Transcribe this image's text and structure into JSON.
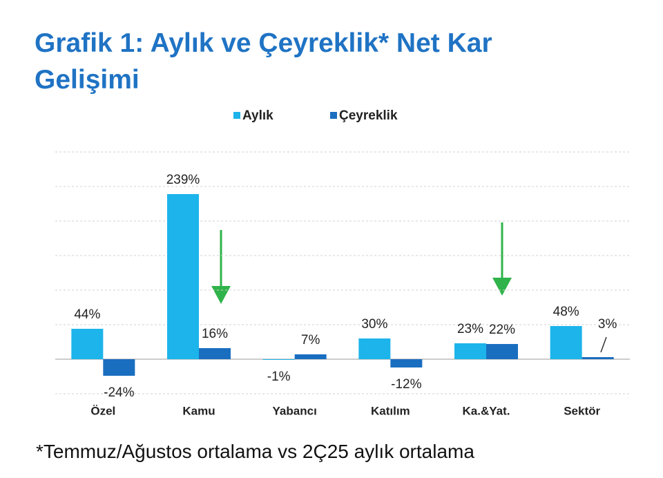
{
  "chart_data": {
    "type": "bar",
    "title": "Grafik 1: Aylık ve Çeyreklik* Net Kar Gelişimi",
    "footnote": "*Temmuz/Ağustos ortalama vs 2Ç25 aylık ortalama",
    "categories": [
      "Özel",
      "Kamu",
      "Yabancı",
      "Katılım",
      "Ka.&Yat.",
      "Sektör"
    ],
    "series": [
      {
        "name": "Aylık",
        "color": "#1cb4ea",
        "values": [
          44,
          239,
          -1,
          30,
          23,
          48
        ],
        "value_labels": [
          "44%",
          "239%",
          "-1%",
          "30%",
          "23%",
          "48%"
        ]
      },
      {
        "name": "Çeyreklik",
        "color": "#1a6ec0",
        "values": [
          -24,
          16,
          7,
          -12,
          22,
          3
        ],
        "value_labels": [
          "-24%",
          "16%",
          "7%",
          "-12%",
          "22%",
          "3%"
        ]
      }
    ],
    "ylim": [
      -50,
      300
    ],
    "yticks": [
      -50,
      0,
      50,
      100,
      150,
      200,
      250,
      300
    ],
    "grid": true,
    "legend": "top"
  }
}
